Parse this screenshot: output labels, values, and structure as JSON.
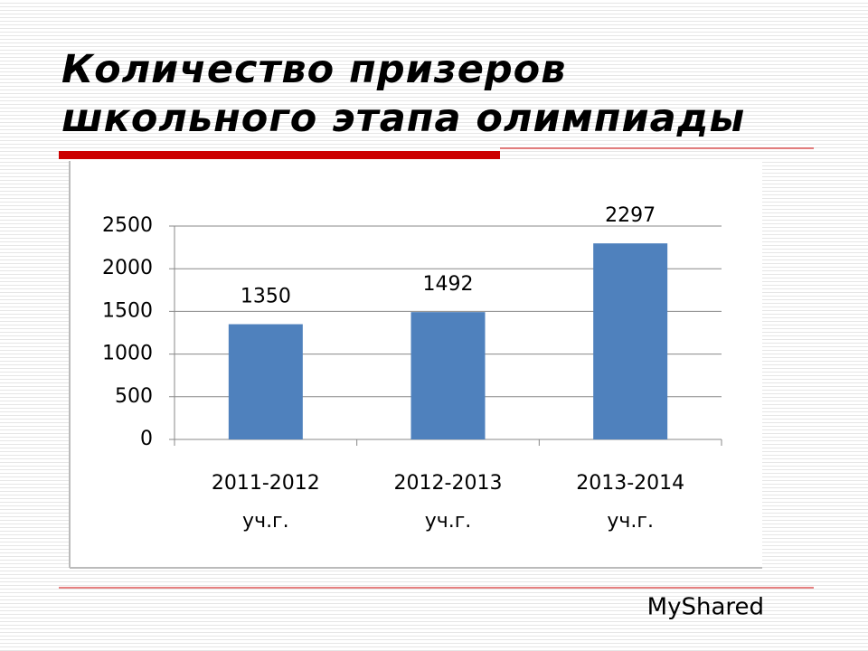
{
  "chart_data": {
    "type": "bar",
    "title": "Количество призеров школьного этапа олимпиады",
    "categories": [
      "2011-2012 уч.г.",
      "2012-2013 уч.г.",
      "2013-2014 уч.г."
    ],
    "values": [
      1350,
      1492,
      2297
    ],
    "color": "#4f81bd",
    "ylim": [
      0,
      2500
    ],
    "yticks": [
      0,
      500,
      1000,
      1500,
      2000,
      2500
    ],
    "grid": true,
    "watermark": "MyShared"
  }
}
